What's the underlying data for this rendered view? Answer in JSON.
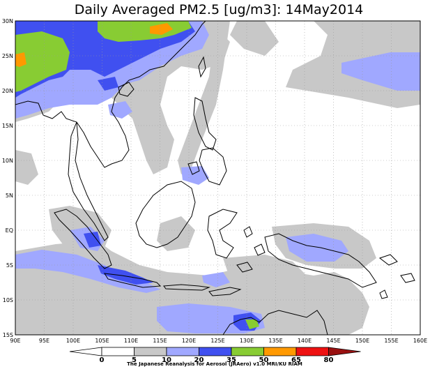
{
  "title": "Daily Averaged PM2.5 [ug/m3]: 14May2014",
  "credit": "The Japanese Reanalysis for Aerosol (JRAero) v1.0 MRI/KU RIAM",
  "map": {
    "lon_range": [
      90,
      160
    ],
    "lat_range": [
      -15,
      30
    ],
    "x_ticks": [
      {
        "value": 90,
        "label": "90E"
      },
      {
        "value": 95,
        "label": "95E"
      },
      {
        "value": 100,
        "label": "100E"
      },
      {
        "value": 105,
        "label": "105E"
      },
      {
        "value": 110,
        "label": "110E"
      },
      {
        "value": 115,
        "label": "115E"
      },
      {
        "value": 120,
        "label": "120E"
      },
      {
        "value": 125,
        "label": "125E"
      },
      {
        "value": 130,
        "label": "130E"
      },
      {
        "value": 135,
        "label": "135E"
      },
      {
        "value": 140,
        "label": "140E"
      },
      {
        "value": 145,
        "label": "145E"
      },
      {
        "value": 150,
        "label": "150E"
      },
      {
        "value": 155,
        "label": "155E"
      },
      {
        "value": 160,
        "label": "160E"
      }
    ],
    "y_ticks": [
      {
        "value": 30,
        "label": "30N"
      },
      {
        "value": 25,
        "label": "25N"
      },
      {
        "value": 20,
        "label": "20N"
      },
      {
        "value": 15,
        "label": "15N"
      },
      {
        "value": 10,
        "label": "10N"
      },
      {
        "value": 5,
        "label": "5N"
      },
      {
        "value": 0,
        "label": "EQ"
      },
      {
        "value": -5,
        "label": "5S"
      },
      {
        "value": -10,
        "label": "10S"
      },
      {
        "value": -15,
        "label": "15S"
      }
    ]
  },
  "colorbar": {
    "labels": [
      "0",
      "5",
      "10",
      "20",
      "35",
      "50",
      "65",
      "80"
    ],
    "colors": [
      "#ffffff",
      "#ffffff",
      "#c8c8c8",
      "#a0a8ff",
      "#4050f0",
      "#88cc33",
      "#ff9900",
      "#ee1111",
      "#991111"
    ]
  },
  "legend_colors": {
    "c5_10": "#c8c8c8",
    "c10_20": "#a0a8ff",
    "c20_35": "#4050f0",
    "c35_50": "#88cc33",
    "c50_65": "#ff9900"
  }
}
